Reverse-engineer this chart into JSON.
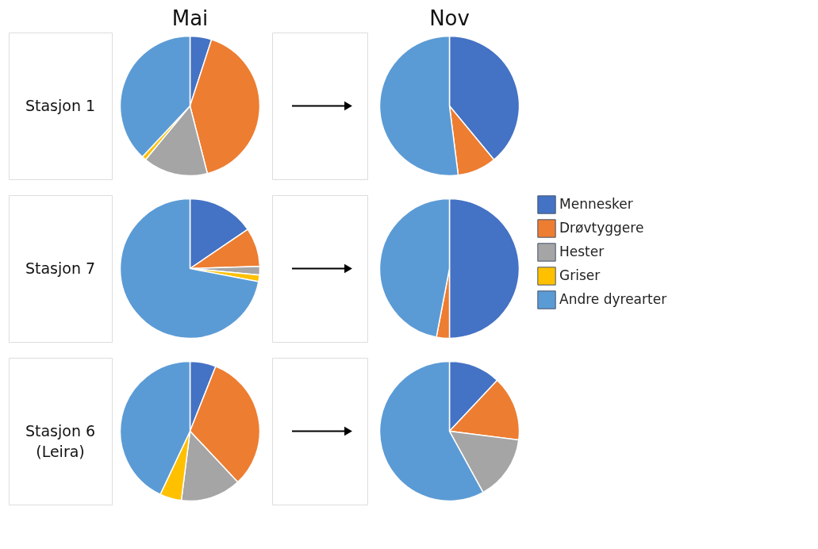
{
  "chart_data": [
    {
      "type": "pie",
      "title": "Mai",
      "ylabel": "Stasjon 1",
      "categories": [
        null,
        null,
        null,
        null,
        null
      ],
      "values": [
        5,
        41,
        15,
        1,
        38
      ],
      "colors": [
        "#4472c4",
        "#ed7d31",
        "#a5a5a5",
        "#ffc000",
        "#5b9bd5"
      ]
    },
    {
      "type": "pie",
      "title": "Nov",
      "categories": [
        null,
        null,
        null,
        null,
        null
      ],
      "values": [
        39,
        9,
        null,
        null,
        52
      ],
      "colors": [
        "#4472c4",
        "#ed7d31",
        "#a5a5a5",
        "#ffc000",
        "#5b9bd5"
      ]
    },
    {
      "type": "pie",
      "ylabel": "Stasjon 7",
      "categories": [
        null,
        null,
        null,
        null,
        null
      ],
      "values": [
        15.5,
        9,
        2,
        1.5,
        72
      ],
      "colors": [
        "#4472c4",
        "#ed7d31",
        "#a5a5a5",
        "#ffc000",
        "#5b9bd5"
      ]
    },
    {
      "type": "pie",
      "legend": "right",
      "categories": [
        "Mennesker",
        "Drøvtyggere",
        "Hester",
        "Griser",
        "Andre dyrearter"
      ],
      "values": [
        50,
        3,
        null,
        null,
        47
      ],
      "colors": [
        "#4472c4",
        "#ed7d31",
        "#a5a5a5",
        "#ffc000",
        "#5b9bd5"
      ]
    },
    {
      "type": "pie",
      "ylabel": "Stasjon 6\n(Leira)",
      "categories": [
        null,
        null,
        null,
        null,
        null
      ],
      "values": [
        6,
        32,
        14,
        5,
        43
      ],
      "colors": [
        "#4472c4",
        "#ed7d31",
        "#a5a5a5",
        "#ffc000",
        "#5b9bd5"
      ]
    },
    {
      "type": "pie",
      "categories": [
        null,
        null,
        null,
        null,
        null
      ],
      "values": [
        12,
        15,
        15,
        null,
        58
      ],
      "colors": [
        "#4472c4",
        "#ed7d31",
        "#a5a5a5",
        "#ffc000",
        "#5b9bd5"
      ]
    }
  ]
}
